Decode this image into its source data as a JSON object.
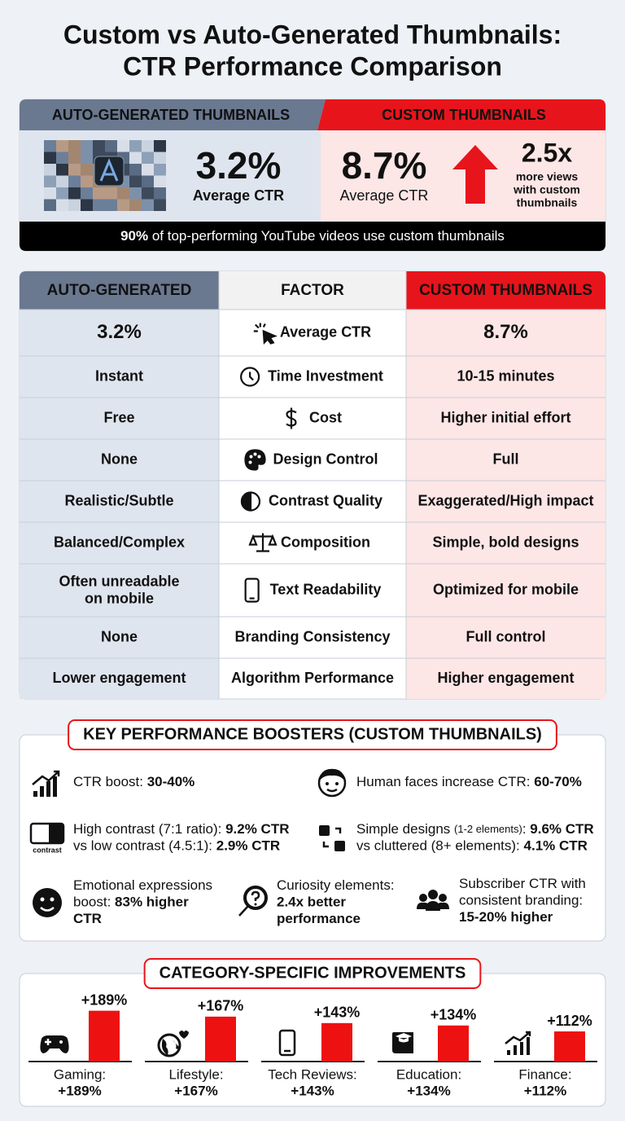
{
  "title": [
    "Custom vs Auto-Generated Thumbnails:",
    "CTR Performance Comparison"
  ],
  "hero": {
    "auto": {
      "heading": "AUTO-GENERATED THUMBNAILS",
      "ctr": "3.2%",
      "ctr_label": "Average CTR"
    },
    "custom": {
      "heading": "CUSTOM THUMBNAILS",
      "ctr": "8.7%",
      "ctr_label": "Average CTR",
      "multiplier": "2.5x",
      "multiplier_note": [
        "more views",
        "with custom",
        "thumbnails"
      ]
    },
    "footer": [
      {
        "t": "90%",
        "b": true
      },
      {
        "t": " of top-performing YouTube videos use custom thumbnails"
      }
    ]
  },
  "table": {
    "headers": [
      "AUTO-GENERATED",
      "FACTOR",
      "CUSTOM THUMBNAILS"
    ],
    "rows": [
      [
        "3.2%",
        "Average CTR",
        "8.7%"
      ],
      [
        "Instant",
        "Time Investment",
        "10-15 minutes"
      ],
      [
        "Free",
        "Cost",
        "Higher initial effort"
      ],
      [
        "None",
        "Design Control",
        "Full"
      ],
      [
        "Realistic/Subtle",
        "Contrast Quality",
        "Exaggerated/High impact"
      ],
      [
        "Balanced/Complex",
        "Composition",
        "Simple, bold designs"
      ],
      [
        [
          "Often unreadable",
          "on mobile"
        ],
        "Text Readability",
        "Optimized for mobile"
      ],
      [
        "None",
        "Branding Consistency",
        "Full control"
      ],
      [
        "Lower engagement",
        "Algorithm Performance",
        "Higher engagement"
      ]
    ]
  },
  "boosters": {
    "title": "KEY PERFORMANCE BOOSTERS (CUSTOM THUMBNAILS)",
    "contrast_icon_label": "contrast",
    "items": [
      {
        "lines": [
          [
            {
              "t": "CTR boost: "
            },
            {
              "t": "30-40%",
              "b": true
            }
          ]
        ]
      },
      {
        "lines": [
          [
            {
              "t": "Human faces increase CTR: "
            },
            {
              "t": "60-70%",
              "b": true
            }
          ]
        ]
      },
      {
        "lines": [
          [
            {
              "t": "High contrast (7:1 ratio): "
            },
            {
              "t": "9.2% CTR",
              "b": true
            }
          ],
          [
            {
              "t": "vs low contrast (4.5:1): "
            },
            {
              "t": "2.9% CTR",
              "b": true
            }
          ]
        ]
      },
      {
        "lines": [
          [
            {
              "t": "Simple designs "
            },
            {
              "t": "(1-2 elements)",
              "s": true
            },
            {
              "t": ": "
            },
            {
              "t": "9.6% CTR",
              "b": true
            }
          ],
          [
            {
              "t": "vs cluttered (8+ elements): "
            },
            {
              "t": "4.1% CTR",
              "b": true
            }
          ]
        ]
      },
      {
        "lines": [
          [
            {
              "t": "Emotional expressions"
            }
          ],
          [
            {
              "t": "boost: "
            },
            {
              "t": "83% higher",
              "b": true
            }
          ],
          [
            {
              "t": "CTR",
              "b": true
            }
          ]
        ]
      },
      {
        "lines": [
          [
            {
              "t": "Curiosity elements:"
            }
          ],
          [
            {
              "t": "2.4x better",
              "b": true
            }
          ],
          [
            {
              "t": "performance",
              "b": true
            }
          ]
        ]
      },
      {
        "lines": [
          [
            {
              "t": "Subscriber CTR with"
            }
          ],
          [
            {
              "t": "consistent branding:"
            }
          ],
          [
            {
              "t": "15-20% higher",
              "b": true
            }
          ]
        ]
      }
    ]
  },
  "chart_data": {
    "type": "bar",
    "title": "CATEGORY-SPECIFIC IMPROVEMENTS",
    "categories": [
      "Gaming:",
      "Lifestyle:",
      "Tech Reviews:",
      "Education:",
      "Finance:"
    ],
    "values": [
      189,
      167,
      143,
      134,
      112
    ],
    "value_labels": [
      "+189%",
      "+167%",
      "+143%",
      "+134%",
      "+112%"
    ],
    "color": "#ee1111"
  }
}
